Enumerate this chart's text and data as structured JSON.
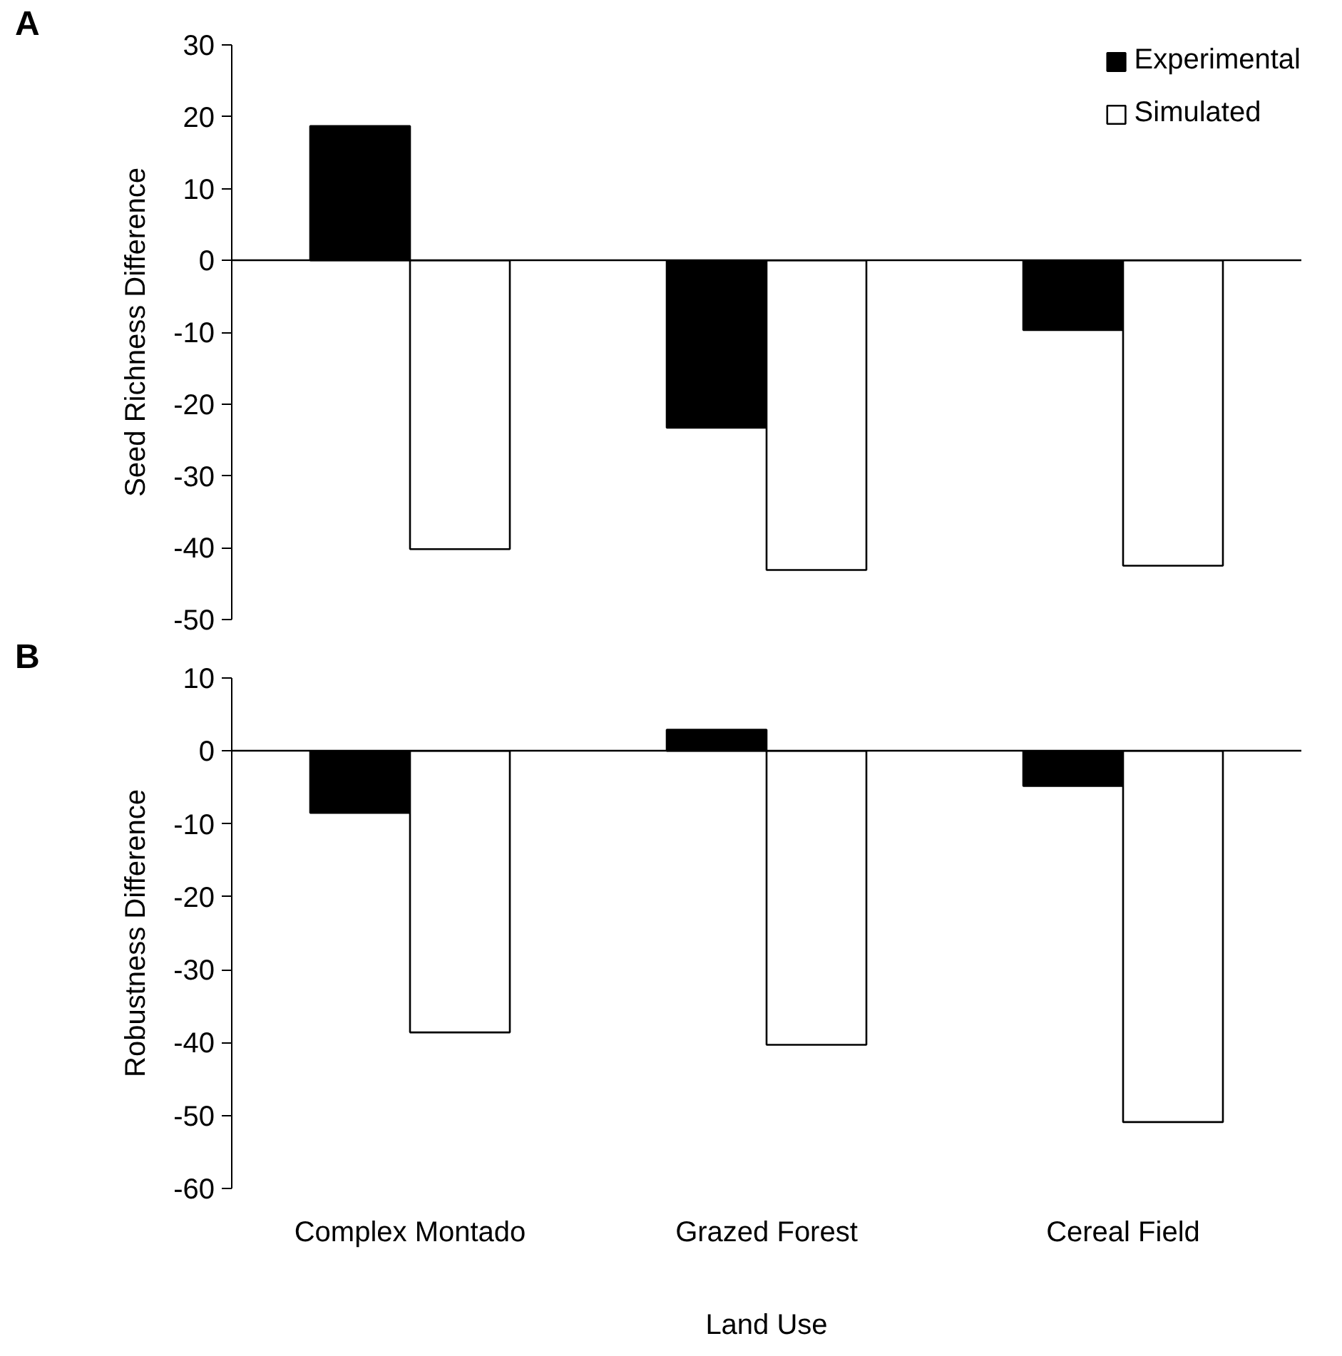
{
  "chart_data": [
    {
      "type": "bar",
      "ylabel": "Seed Richness Difference",
      "annotations": [
        "A"
      ],
      "series": [
        {
          "name": "Experimental",
          "color": "#000000",
          "values": [
            18.7,
            -23.3,
            -9.7
          ]
        },
        {
          "name": "Simulated",
          "color": "#ffffff",
          "values": [
            -40.2,
            -43.1,
            -42.5
          ]
        }
      ],
      "ylim": [
        -50,
        30
      ],
      "yticks": [
        -50,
        -40,
        -30,
        -20,
        -10,
        0,
        10,
        20,
        30
      ],
      "legend": "top right",
      "tick_labels": "y"
    },
    {
      "type": "bar",
      "ylabel": "Robustness Difference",
      "xlabel": "Land Use",
      "annotations": [
        "B"
      ],
      "categories": [
        "Complex Montado",
        "Grazed Forest",
        "Cereal Field"
      ],
      "series": [
        {
          "color": "#000000",
          "values": [
            -8.5,
            2.9,
            -4.8
          ]
        },
        {
          "color": "#ffffff",
          "values": [
            -38.6,
            -40.3,
            -50.9
          ]
        }
      ],
      "ylim": [
        -60,
        10
      ],
      "yticks": [
        -60,
        -50,
        -40,
        -30,
        -20,
        -10,
        0,
        10
      ]
    }
  ]
}
